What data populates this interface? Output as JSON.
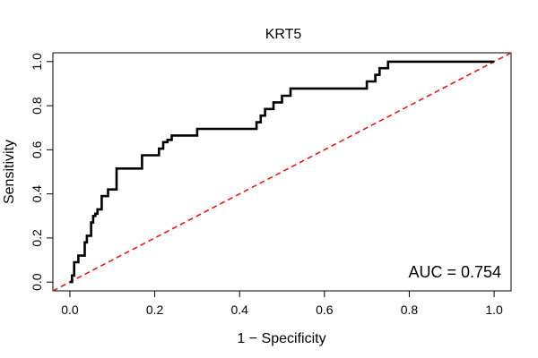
{
  "chart_data": {
    "type": "line",
    "title": "KRT5",
    "xlabel": "1 − Specificity",
    "ylabel": "Sensitivity",
    "xlim": [
      -0.04,
      1.04
    ],
    "ylim": [
      -0.04,
      1.04
    ],
    "x_ticks": [
      0.0,
      0.2,
      0.4,
      0.6,
      0.8,
      1.0
    ],
    "x_tick_labels": [
      "0.0",
      "0.2",
      "0.4",
      "0.6",
      "0.8",
      "1.0"
    ],
    "y_ticks": [
      0.0,
      0.2,
      0.4,
      0.6,
      0.8,
      1.0
    ],
    "y_tick_labels": [
      "0.0",
      "0.2",
      "0.4",
      "0.6",
      "0.8",
      "1.0"
    ],
    "annotation": "AUC = 0.754",
    "grid": false,
    "colors": {
      "roc": "#000000",
      "reference": "#e31a1c"
    },
    "series": [
      {
        "style": "solid",
        "x": [
          0.0,
          0.005,
          0.005,
          0.01,
          0.01,
          0.02,
          0.02,
          0.035,
          0.035,
          0.04,
          0.04,
          0.05,
          0.05,
          0.055,
          0.055,
          0.06,
          0.06,
          0.065,
          0.065,
          0.075,
          0.075,
          0.09,
          0.09,
          0.11,
          0.11,
          0.12,
          0.12,
          0.17,
          0.17,
          0.21,
          0.21,
          0.22,
          0.22,
          0.23,
          0.23,
          0.24,
          0.24,
          0.25,
          0.25,
          0.3,
          0.3,
          0.44,
          0.44,
          0.45,
          0.45,
          0.46,
          0.46,
          0.48,
          0.48,
          0.5,
          0.5,
          0.52,
          0.52,
          0.7,
          0.7,
          0.72,
          0.72,
          0.73,
          0.73,
          0.75,
          0.75,
          1.0
        ],
        "y": [
          0.0,
          0.0,
          0.03,
          0.03,
          0.09,
          0.09,
          0.12,
          0.12,
          0.18,
          0.18,
          0.21,
          0.21,
          0.27,
          0.27,
          0.3,
          0.3,
          0.31,
          0.31,
          0.33,
          0.33,
          0.39,
          0.39,
          0.42,
          0.42,
          0.515,
          0.515,
          0.515,
          0.515,
          0.575,
          0.575,
          0.605,
          0.605,
          0.635,
          0.635,
          0.645,
          0.645,
          0.665,
          0.665,
          0.665,
          0.665,
          0.695,
          0.695,
          0.725,
          0.725,
          0.755,
          0.755,
          0.785,
          0.785,
          0.815,
          0.815,
          0.845,
          0.845,
          0.878,
          0.878,
          0.91,
          0.91,
          0.94,
          0.94,
          0.97,
          0.97,
          1.0,
          1.0
        ]
      },
      {
        "style": "dashed",
        "x": [
          -0.04,
          1.04
        ],
        "y": [
          -0.04,
          1.04
        ]
      }
    ]
  }
}
